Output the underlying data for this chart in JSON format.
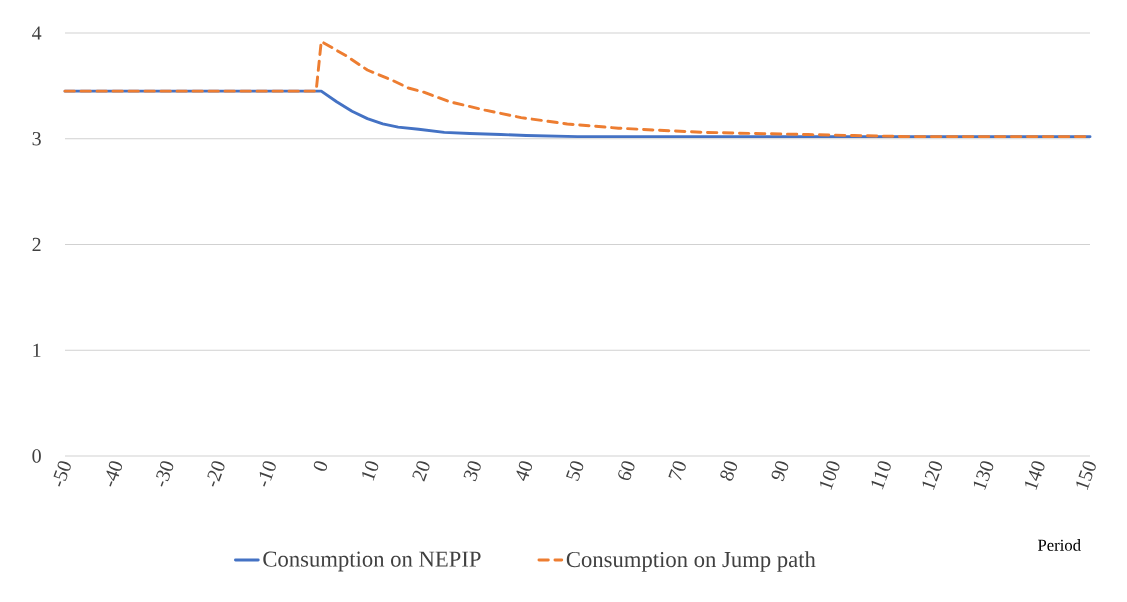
{
  "chart_data": {
    "type": "line",
    "xlabel": "Period",
    "xlim": [
      -50,
      150
    ],
    "xticks": [
      -50,
      -40,
      -30,
      -20,
      -10,
      0,
      10,
      20,
      30,
      40,
      50,
      60,
      70,
      80,
      90,
      100,
      110,
      120,
      130,
      140,
      150
    ],
    "ylim": [
      0,
      4
    ],
    "yticks": [
      0,
      1,
      2,
      3,
      4
    ],
    "grid": "y",
    "legend": "bottom",
    "marker": "none",
    "series": [
      {
        "name": "Consumption on NEPIP",
        "color": "#4472c4",
        "line_style": "solid",
        "x": [
          -50,
          -1,
          0,
          3,
          6,
          9,
          12,
          15,
          19,
          24,
          29,
          35,
          40,
          50,
          150
        ],
        "values": [
          3.45,
          3.45,
          3.45,
          3.35,
          3.26,
          3.19,
          3.14,
          3.11,
          3.09,
          3.06,
          3.05,
          3.04,
          3.03,
          3.02,
          3.02
        ]
      },
      {
        "name": "Consumption on Jump path",
        "color": "#ed7d31",
        "line_style": "dashed",
        "x": [
          -50,
          -1,
          0,
          5,
          9,
          14,
          17,
          20,
          25,
          32,
          39,
          48,
          58,
          66,
          75,
          84,
          95,
          104,
          115,
          150
        ],
        "values": [
          3.45,
          3.45,
          3.92,
          3.78,
          3.65,
          3.55,
          3.48,
          3.44,
          3.35,
          3.27,
          3.2,
          3.14,
          3.1,
          3.08,
          3.06,
          3.05,
          3.04,
          3.03,
          3.02,
          3.02
        ]
      }
    ]
  }
}
